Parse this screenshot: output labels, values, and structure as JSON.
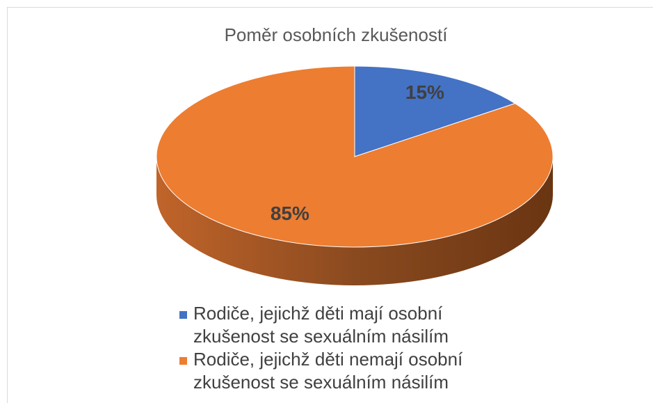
{
  "chart_data": {
    "type": "pie",
    "title": "Poměr osobních zkušeností",
    "categories": [
      "Rodiče, jejichž děti mají osobní zkušenost se sexuálním násilím",
      "Rodiče, jejichž děti nemají osobní zkušenost se sexuálním násilím"
    ],
    "values": [
      15,
      85
    ],
    "value_labels": [
      "15%",
      "85%"
    ],
    "colors": [
      "#4472c4",
      "#ed7d31"
    ],
    "legend": "bottom"
  }
}
